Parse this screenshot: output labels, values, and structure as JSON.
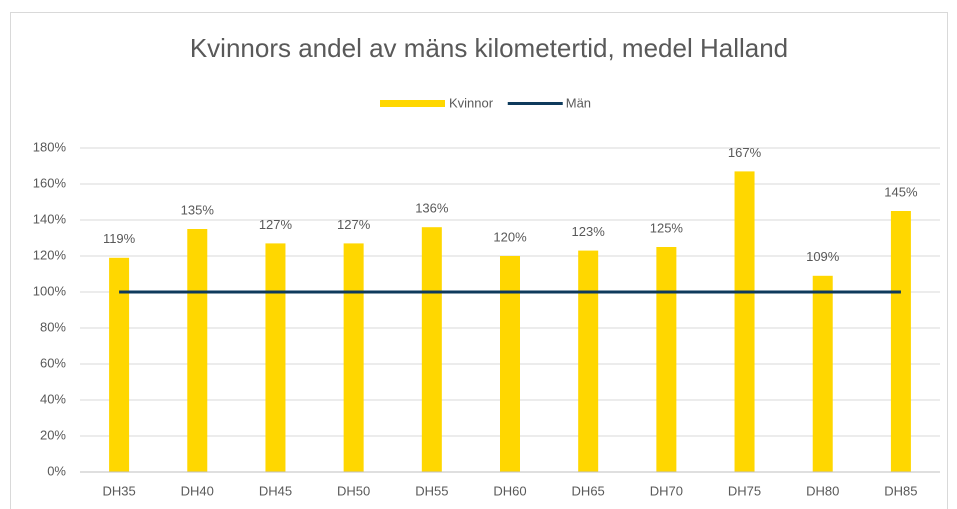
{
  "chart_data": {
    "type": "bar",
    "title": "Kvinnors andel av mäns kilometertid, medel Halland",
    "categories": [
      "DH35",
      "DH40",
      "DH45",
      "DH50",
      "DH55",
      "DH60",
      "DH65",
      "DH70",
      "DH75",
      "DH80",
      "DH85"
    ],
    "series": [
      {
        "name": "Kvinnor",
        "type": "bar",
        "color": "#ffd700",
        "values": [
          119,
          135,
          127,
          127,
          136,
          120,
          123,
          125,
          167,
          109,
          145
        ],
        "value_labels": [
          "119%",
          "135%",
          "127%",
          "127%",
          "136%",
          "120%",
          "123%",
          "125%",
          "167%",
          "109%",
          "145%"
        ]
      },
      {
        "name": "Män",
        "type": "line",
        "color": "#0e3a5c",
        "values": [
          100,
          100,
          100,
          100,
          100,
          100,
          100,
          100,
          100,
          100,
          100
        ]
      }
    ],
    "ylim": [
      0,
      180
    ],
    "yticks": [
      {
        "value": 0,
        "label": "0%"
      },
      {
        "value": 20,
        "label": "20%"
      },
      {
        "value": 40,
        "label": "40%"
      },
      {
        "value": 60,
        "label": "60%"
      },
      {
        "value": 80,
        "label": "80%"
      },
      {
        "value": 100,
        "label": "100%"
      },
      {
        "value": 120,
        "label": "120%"
      },
      {
        "value": 140,
        "label": "140%"
      },
      {
        "value": 160,
        "label": "160%"
      },
      {
        "value": 180,
        "label": "180%"
      }
    ],
    "grid": true,
    "legend": "top"
  }
}
